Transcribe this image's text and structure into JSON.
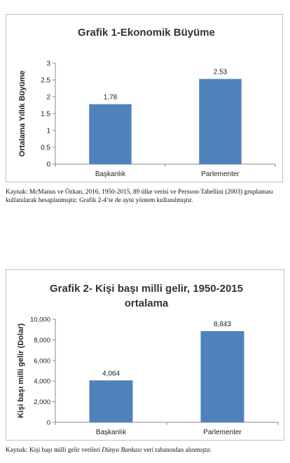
{
  "chart_data": [
    {
      "type": "bar",
      "title_lines": [
        "Grafik 1-Ekonomik Büyüme"
      ],
      "ylabel": "Ortalama Yıllık Büyüme",
      "xlabel": "",
      "categories": [
        "Başkanlık",
        "Parlementer"
      ],
      "values": [
        1.78,
        2.53
      ],
      "value_labels": [
        "1.78",
        "2.53"
      ],
      "ylim": [
        0,
        3
      ],
      "yticks": [
        "0",
        "0.5",
        "1",
        "1.5",
        "2",
        "2.5",
        "3"
      ],
      "grid": false,
      "bar_color": "#4f81bd"
    },
    {
      "type": "bar",
      "title_lines": [
        "Grafik 2- Kişi başı milli gelir, 1950-2015",
        "ortalama"
      ],
      "ylabel": "Kişi başı milli gelir (Dolar)",
      "xlabel": "",
      "categories": [
        "Başkanlık",
        "Parlementer"
      ],
      "values": [
        4064,
        8843
      ],
      "value_labels": [
        "4,064",
        "8,843"
      ],
      "ylim": [
        0,
        10000
      ],
      "yticks": [
        "0",
        "2,000",
        "4,000",
        "6,000",
        "8,000",
        "10,000"
      ],
      "grid": false,
      "bar_color": "#4f81bd"
    }
  ],
  "captions": {
    "caption1": "Kaynak: McManus ve Özkan, 2016,  1950-2015, 89 ülke verisi ve Persson-Tabellini (2003) gruplaması kullanılarak hesaplanmıştır. Grafik 2-4’te de aynı yöntem kullanılmıştır.",
    "caption2_before": "Kaynak: Kişi başı milli gelir verileri ",
    "caption2_italic": "Dünya Bankası",
    "caption2_after": " veri tabanından alınmıştır."
  }
}
